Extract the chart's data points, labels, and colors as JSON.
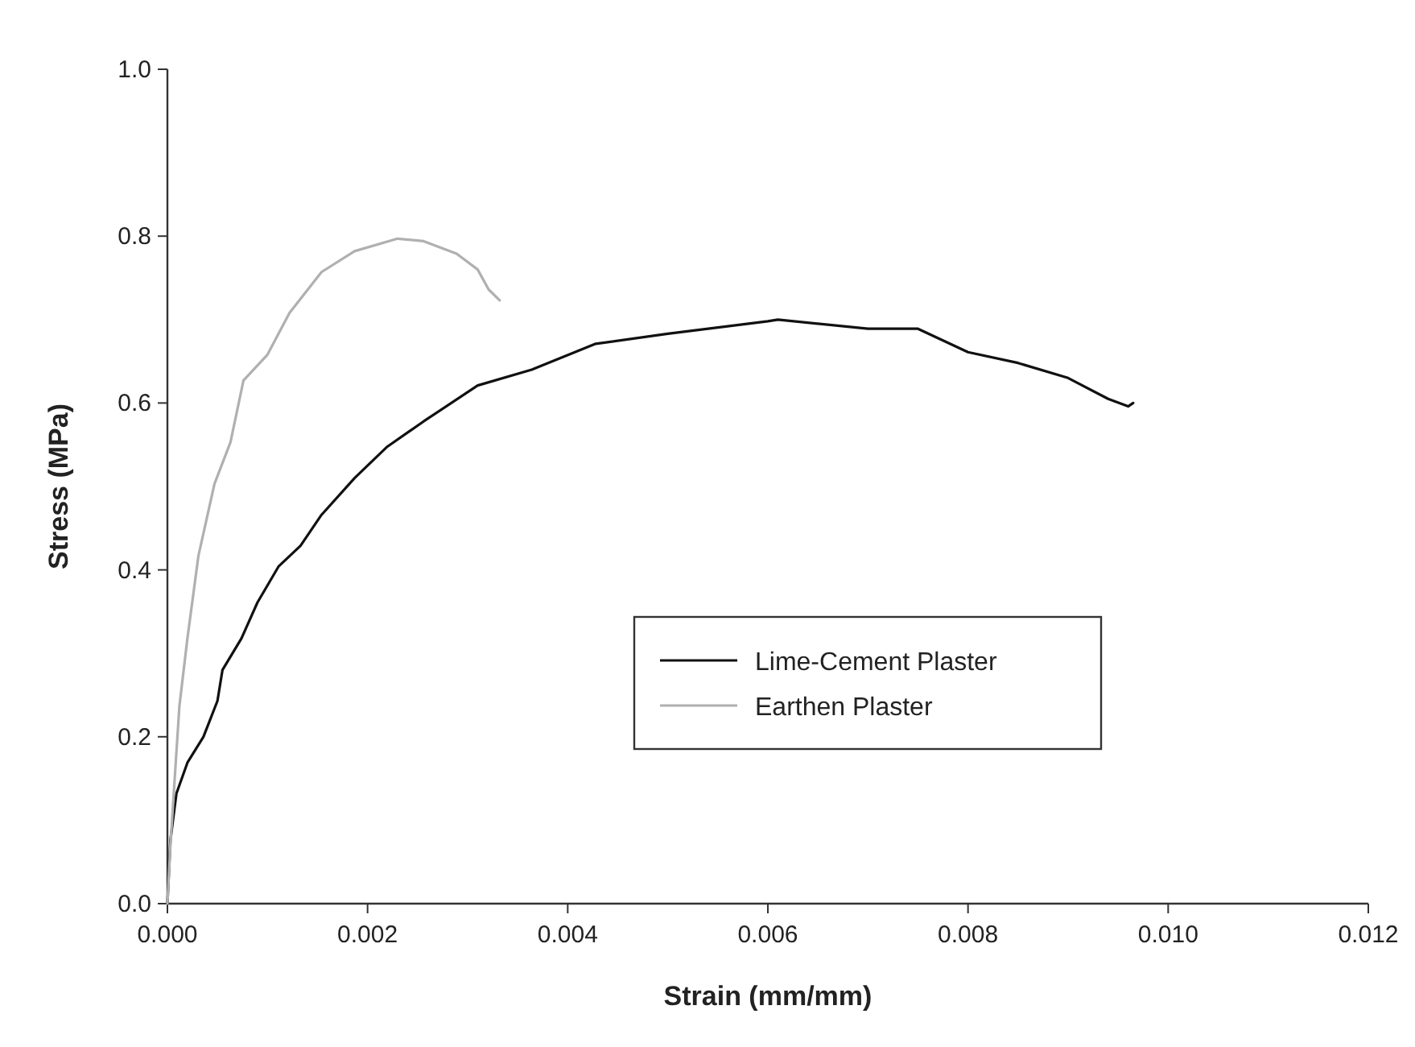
{
  "chart_data": {
    "type": "line",
    "xlabel": "Strain (mm/mm)",
    "ylabel": "Stress (MPa)",
    "xlim": [
      0,
      0.012
    ],
    "ylim": [
      0,
      1.0
    ],
    "xticks": [
      {
        "value": 0,
        "label": "0.000"
      },
      {
        "value": 0.002,
        "label": "0.002"
      },
      {
        "value": 0.004,
        "label": "0.004"
      },
      {
        "value": 0.006,
        "label": "0.006"
      },
      {
        "value": 0.008,
        "label": "0.008"
      },
      {
        "value": 0.01,
        "label": "0.010"
      },
      {
        "value": 0.012,
        "label": "0.012"
      }
    ],
    "yticks": [
      {
        "value": 0,
        "label": "0.0"
      },
      {
        "value": 0.2,
        "label": "0.2"
      },
      {
        "value": 0.4,
        "label": "0.4"
      },
      {
        "value": 0.6,
        "label": "0.6"
      },
      {
        "value": 0.8,
        "label": "0.8"
      },
      {
        "value": 1.0,
        "label": "1.0"
      }
    ],
    "grid": false,
    "legend": "center right",
    "line_style": "solid",
    "series": [
      {
        "name": "Lime-Cement Plaster",
        "color": "#111111",
        "x": [
          0,
          3e-05,
          9e-05,
          0.0002,
          0.00036,
          0.0005,
          0.00055,
          0.00074,
          0.0009,
          0.00111,
          0.00133,
          0.00154,
          0.00187,
          0.00219,
          0.00256,
          0.0031,
          0.00364,
          0.00428,
          0.005,
          0.006,
          0.0061,
          0.007,
          0.0075,
          0.008,
          0.0085,
          0.009,
          0.0094,
          0.0096,
          0.00965
        ],
        "values": [
          0,
          0.076,
          0.132,
          0.169,
          0.2,
          0.243,
          0.28,
          0.318,
          0.361,
          0.404,
          0.429,
          0.466,
          0.51,
          0.547,
          0.578,
          0.621,
          0.64,
          0.671,
          0.683,
          0.698,
          0.7,
          0.689,
          0.689,
          0.661,
          0.648,
          0.63,
          0.605,
          0.596,
          0.6
        ]
      },
      {
        "name": "Earthen Plaster",
        "color": "#b0b0b0",
        "x": [
          0,
          3e-05,
          8e-05,
          0.00012,
          0.0002,
          0.00031,
          0.00047,
          0.00063,
          0.00076,
          0.001,
          0.00122,
          0.00154,
          0.00187,
          0.0023,
          0.00256,
          0.00289,
          0.0031,
          0.00321,
          0.00332
        ],
        "values": [
          0,
          0.07,
          0.163,
          0.237,
          0.318,
          0.417,
          0.503,
          0.553,
          0.627,
          0.658,
          0.708,
          0.757,
          0.782,
          0.797,
          0.794,
          0.779,
          0.76,
          0.736,
          0.723
        ]
      }
    ]
  }
}
